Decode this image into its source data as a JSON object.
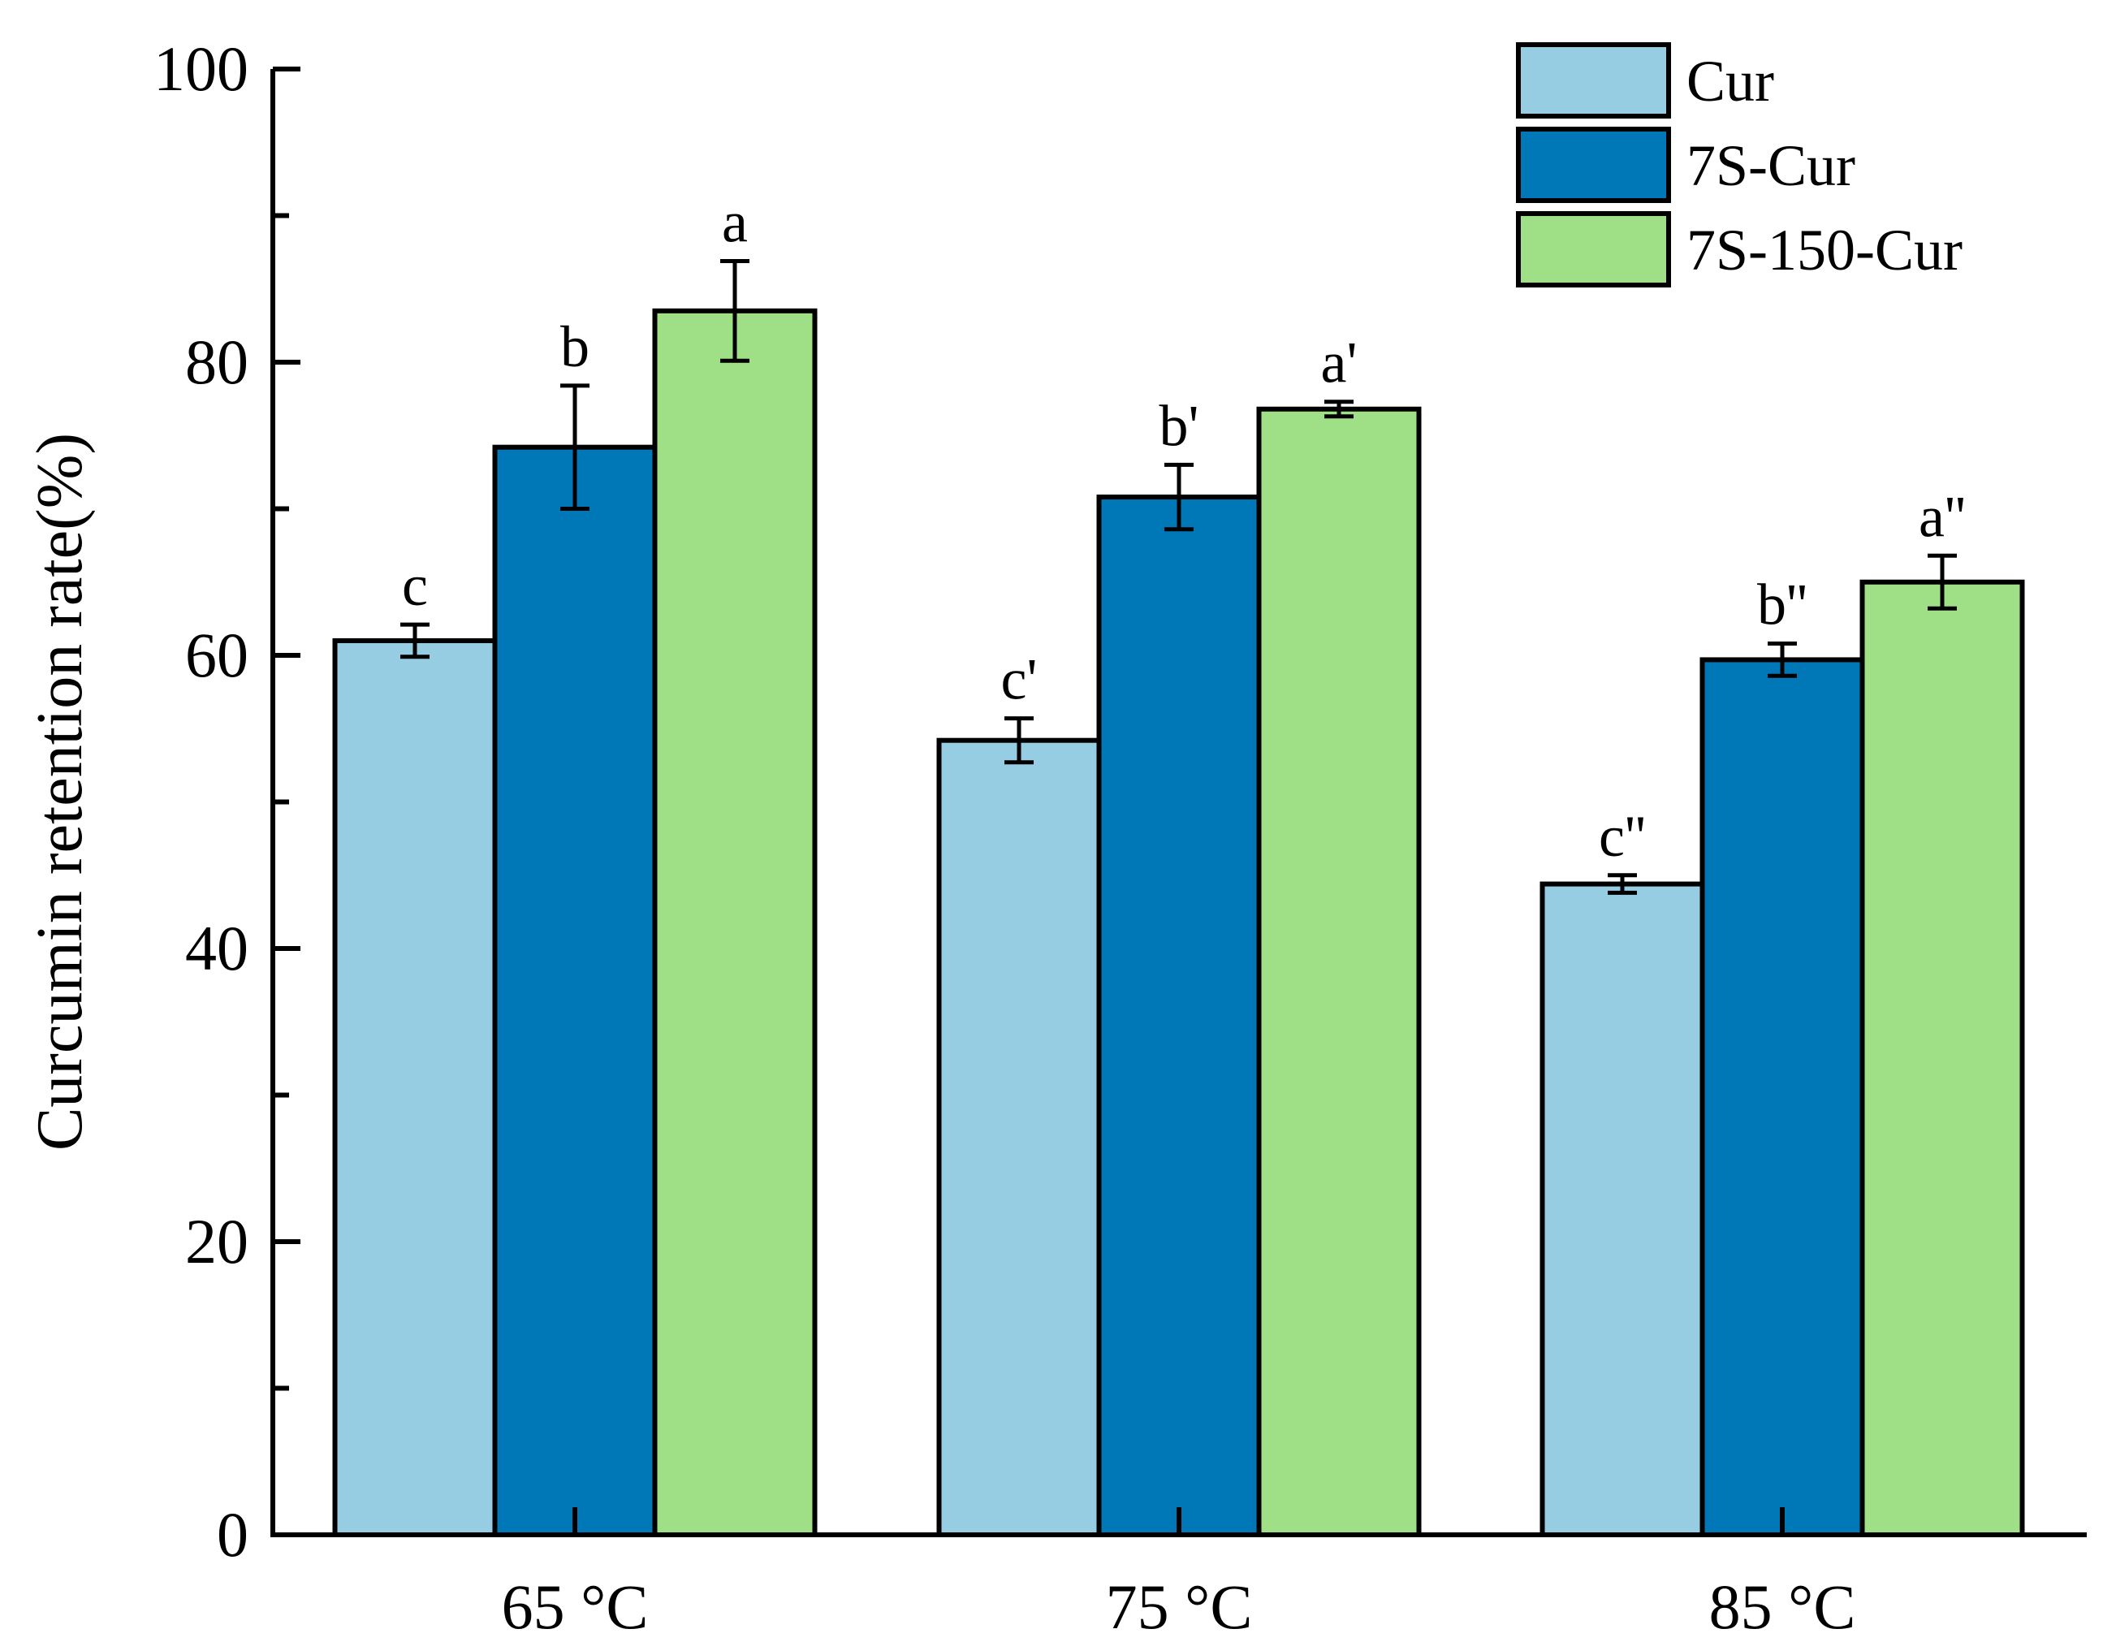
{
  "chart_data": {
    "type": "bar",
    "title": "",
    "xlabel": "",
    "ylabel": "Curcumin retention rate(%)",
    "ylim": [
      0,
      100
    ],
    "yticks": [
      "0",
      "20",
      "40",
      "60",
      "80",
      "100"
    ],
    "grid": false,
    "legend_position": "top-right",
    "categories": [
      "65 °C",
      "75 °C",
      "85 °C"
    ],
    "series": [
      {
        "name": "Cur",
        "color": "#96CDE3",
        "values": [
          61.0,
          54.2,
          44.4
        ],
        "errors": [
          1.1,
          1.5,
          0.6
        ],
        "letters": [
          "c",
          "c'",
          "c''"
        ]
      },
      {
        "name": "7S-Cur",
        "color": "#0077B6",
        "values": [
          74.2,
          70.8,
          59.7
        ],
        "errors": [
          4.2,
          2.2,
          1.1
        ],
        "letters": [
          "b",
          "b'",
          "b''"
        ]
      },
      {
        "name": "7S-150-Cur",
        "color": "#9FE086",
        "values": [
          83.5,
          76.8,
          65.0
        ],
        "errors": [
          3.4,
          0.5,
          1.8
        ],
        "letters": [
          "a",
          "a'",
          "a''"
        ]
      }
    ]
  }
}
